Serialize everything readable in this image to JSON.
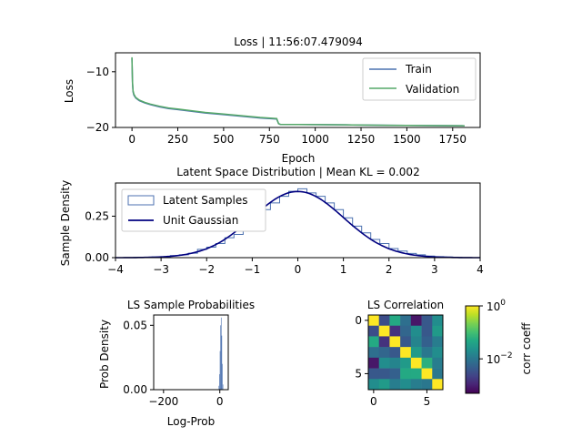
{
  "colors": {
    "train": "#4c72b0",
    "validation": "#55a868",
    "latent_hist": "#4c72b0",
    "gaussian": "#000080",
    "prob_hist": "#4c72b0"
  },
  "chart_data": [
    {
      "id": "loss",
      "type": "line",
      "title": "Loss | 11:56:07.479094",
      "xlabel": "Epoch",
      "ylabel": "Loss",
      "xlim": [
        -90,
        1900
      ],
      "ylim": [
        -20,
        -6.6
      ],
      "xticks": [
        0,
        250,
        500,
        750,
        1000,
        1250,
        1500,
        1750
      ],
      "xtick_labels": [
        "0",
        "250",
        "500",
        "750",
        "1000",
        "1250",
        "1500",
        "1750"
      ],
      "yticks": [
        -20,
        -10
      ],
      "ytick_labels": [
        "−20",
        "−10"
      ],
      "legend_position": "upper-right",
      "series": [
        {
          "name": "Train",
          "color_key": "train",
          "x": [
            0,
            3,
            6,
            10,
            20,
            40,
            70,
            100,
            150,
            200,
            250,
            300,
            400,
            500,
            600,
            700,
            790,
            800,
            805,
            810,
            1000,
            1200,
            1400,
            1600,
            1815
          ],
          "y": [
            -7.6,
            -12.0,
            -13.6,
            -14.2,
            -14.7,
            -15.2,
            -15.6,
            -15.9,
            -16.3,
            -16.6,
            -16.8,
            -17.0,
            -17.4,
            -17.7,
            -18.0,
            -18.3,
            -18.5,
            -19.3,
            -19.4,
            -19.45,
            -19.5,
            -19.55,
            -19.6,
            -19.65,
            -19.7
          ]
        },
        {
          "name": "Validation",
          "color_key": "validation",
          "x": [
            0,
            3,
            6,
            10,
            20,
            40,
            70,
            100,
            150,
            200,
            250,
            300,
            400,
            500,
            600,
            700,
            790,
            800,
            805,
            810,
            1000,
            1200,
            1400,
            1600,
            1815
          ],
          "y": [
            -7.4,
            -11.8,
            -13.4,
            -14.0,
            -14.6,
            -15.1,
            -15.5,
            -15.8,
            -16.2,
            -16.5,
            -16.7,
            -16.9,
            -17.3,
            -17.6,
            -17.9,
            -18.2,
            -18.4,
            -19.3,
            -19.4,
            -19.45,
            -19.5,
            -19.55,
            -19.6,
            -19.65,
            -19.7
          ]
        }
      ]
    },
    {
      "id": "latent",
      "type": "line",
      "title": "Latent Space Distribution | Mean KL = 0.002",
      "xlabel": "",
      "ylabel": "Sample Density",
      "xlim": [
        -4,
        4
      ],
      "ylim": [
        0,
        0.45
      ],
      "xticks": [
        -4,
        -3,
        -2,
        -1,
        0,
        1,
        2,
        3,
        4
      ],
      "xtick_labels": [
        "−4",
        "−3",
        "−2",
        "−1",
        "0",
        "1",
        "2",
        "3",
        "4"
      ],
      "yticks": [
        0,
        0.25
      ],
      "ytick_labels": [
        "0.00",
        "0.25"
      ],
      "legend_position": "upper-left",
      "histogram": {
        "name": "Latent Samples",
        "color_key": "latent_hist",
        "bin_edges": [
          -3.6,
          -3.4,
          -3.2,
          -3.0,
          -2.8,
          -2.6,
          -2.4,
          -2.2,
          -2.0,
          -1.8,
          -1.6,
          -1.4,
          -1.2,
          -1.0,
          -0.8,
          -0.6,
          -0.4,
          -0.2,
          0.0,
          0.2,
          0.4,
          0.6,
          0.8,
          1.0,
          1.2,
          1.4,
          1.6,
          1.8,
          2.0,
          2.2,
          2.4,
          2.6,
          2.8,
          3.0,
          3.2,
          3.4,
          3.6
        ],
        "density": [
          0.002,
          0.002,
          0.005,
          0.006,
          0.012,
          0.017,
          0.027,
          0.05,
          0.063,
          0.085,
          0.12,
          0.14,
          0.19,
          0.23,
          0.29,
          0.33,
          0.37,
          0.4,
          0.415,
          0.39,
          0.37,
          0.33,
          0.29,
          0.24,
          0.19,
          0.15,
          0.11,
          0.085,
          0.055,
          0.04,
          0.025,
          0.017,
          0.01,
          0.006,
          0.004,
          0.002
        ]
      },
      "curve": {
        "name": "Unit Gaussian",
        "color_key": "gaussian",
        "function": "standard_normal_pdf"
      }
    },
    {
      "id": "logprob",
      "type": "bar",
      "title": "LS Sample Probabilities",
      "xlabel": "Log-Prob",
      "ylabel": "Prob Density",
      "xlim": [
        -235,
        30
      ],
      "ylim": [
        0,
        0.058
      ],
      "xticks": [
        -200,
        0
      ],
      "xtick_labels": [
        "−200",
        "0"
      ],
      "yticks": [
        0,
        0.05
      ],
      "ytick_labels": [
        "0.00",
        "0.05"
      ],
      "color_key": "prob_hist",
      "bin_edges": [
        -4,
        -2,
        0,
        2,
        4,
        6,
        8,
        10,
        12
      ],
      "density": [
        0.003,
        0.012,
        0.03,
        0.05,
        0.056,
        0.042,
        0.02,
        0.004
      ]
    },
    {
      "id": "corr",
      "type": "heatmap",
      "title": "LS Correlation",
      "xticks": [
        0,
        5
      ],
      "xtick_labels": [
        "0",
        "5"
      ],
      "yticks": [
        0,
        5
      ],
      "ytick_labels": [
        "0",
        "5"
      ],
      "colorbar_label": "corr coeff",
      "colorbar_scale": "log",
      "colorbar_range": [
        0.0005,
        1
      ],
      "colorbar_ticks": [
        1,
        0.01
      ],
      "colorbar_tick_base": [
        "10",
        "10"
      ],
      "colorbar_tick_exp": [
        "0",
        "−2"
      ],
      "matrix": [
        [
          1,
          0.003,
          0.05,
          0.008,
          0.0008,
          0.004,
          0.02
        ],
        [
          0.003,
          1,
          0.0015,
          0.006,
          0.02,
          0.004,
          0.03
        ],
        [
          0.05,
          0.0015,
          1,
          0.004,
          0.015,
          0.005,
          0.012
        ],
        [
          0.008,
          0.006,
          0.004,
          1,
          0.03,
          0.01,
          0.02
        ],
        [
          0.0008,
          0.02,
          0.015,
          0.03,
          1,
          0.06,
          0.012
        ],
        [
          0.004,
          0.004,
          0.005,
          0.05,
          0.05,
          1,
          0.01
        ],
        [
          0.02,
          0.03,
          0.012,
          0.02,
          0.012,
          0.01,
          1
        ]
      ]
    }
  ]
}
